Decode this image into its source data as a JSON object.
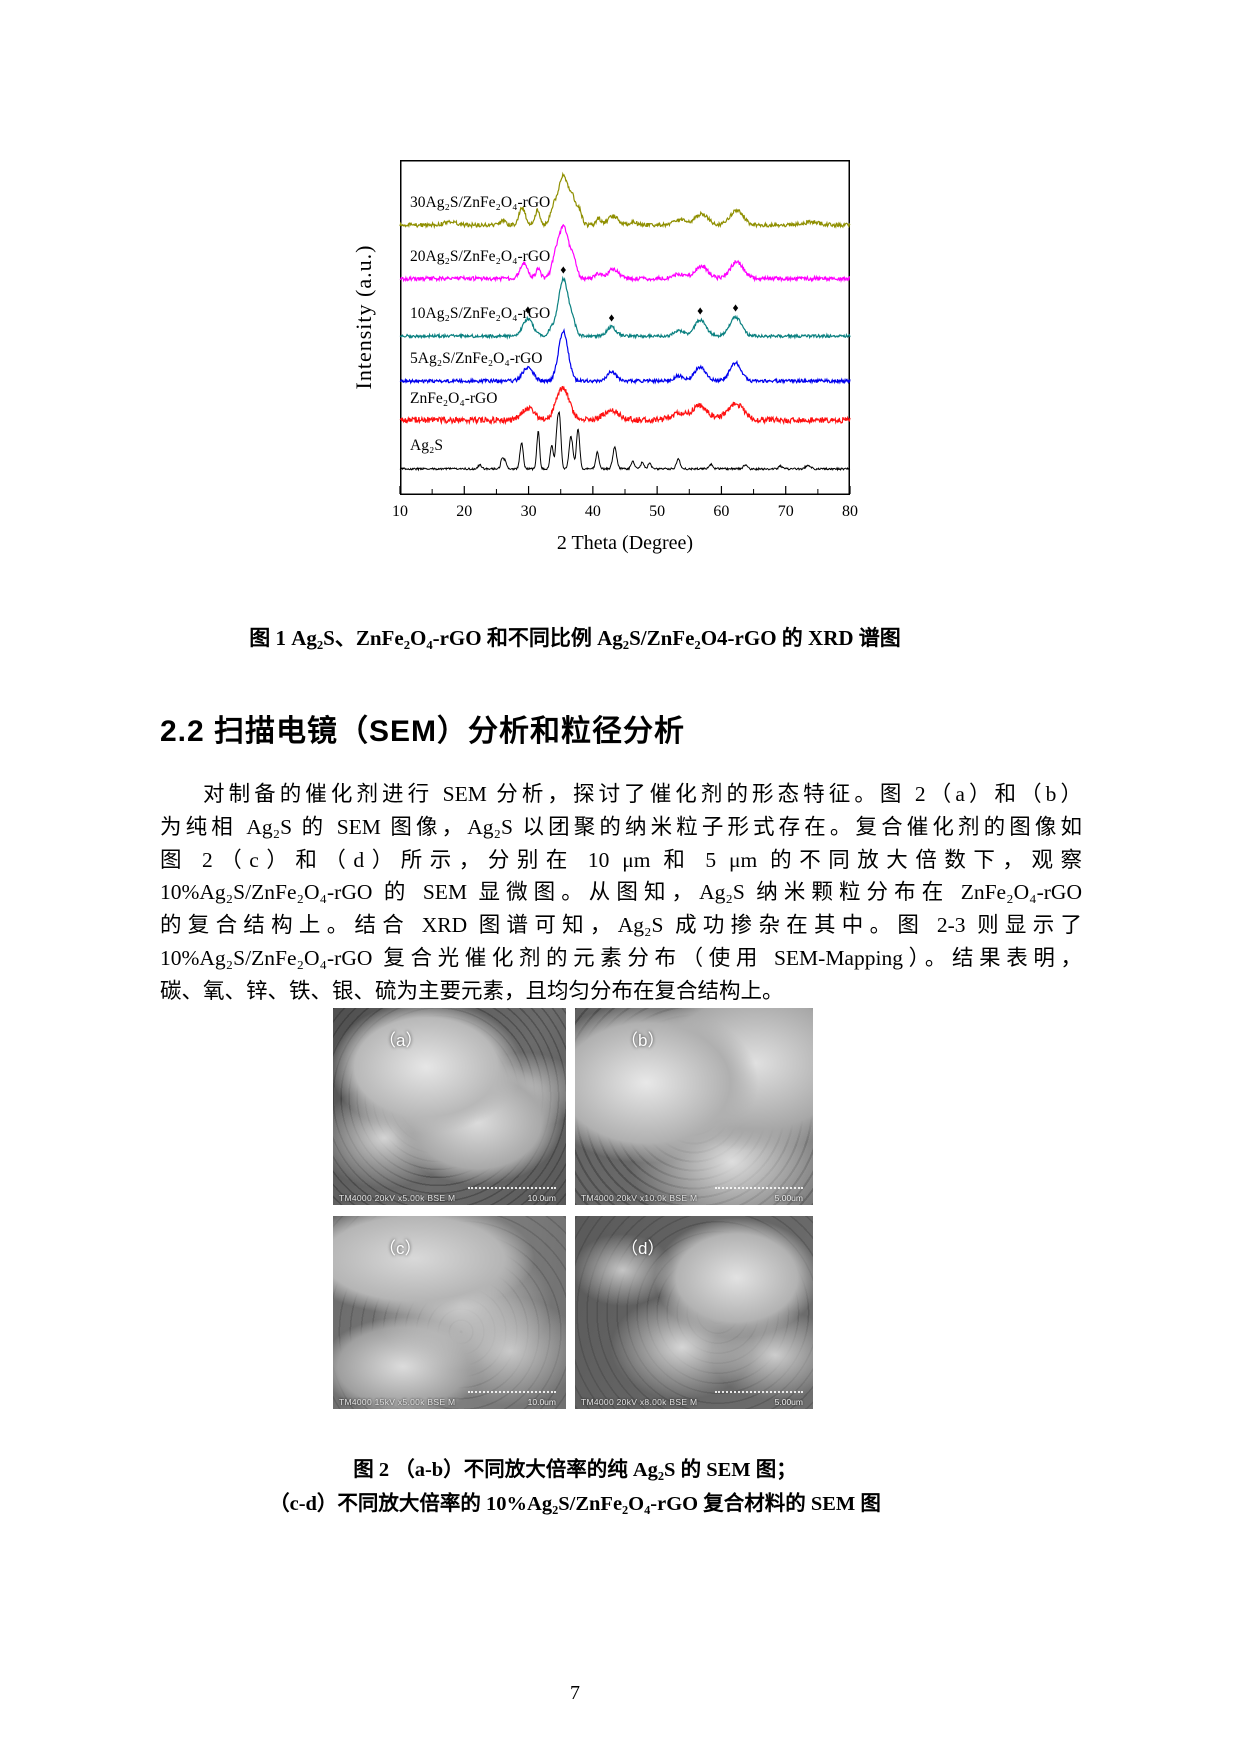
{
  "page": {
    "number": "7"
  },
  "chart_data": {
    "type": "line",
    "title": "",
    "xlabel": "2 Theta (Degree)",
    "ylabel": "Intensity (a.u.)",
    "xlim": [
      10,
      80
    ],
    "xticks": [
      10,
      20,
      30,
      40,
      50,
      60,
      70,
      80
    ],
    "grid": false,
    "marker_symbol": "♦",
    "series": [
      {
        "label": "30Ag₂S/ZnFe₂O₄-rGO",
        "color": "#8f8f00",
        "baseline": 0.2,
        "scale": 50,
        "noise": 4,
        "peaks": [
          {
            "c": 17.8,
            "h": 0.07,
            "w": 0.9
          },
          {
            "c": 26.0,
            "h": 0.1,
            "w": 0.4
          },
          {
            "c": 29.0,
            "h": 0.34,
            "w": 0.5
          },
          {
            "c": 31.4,
            "h": 0.3,
            "w": 0.4
          },
          {
            "c": 33.8,
            "h": 0.28,
            "w": 0.5
          },
          {
            "c": 35.4,
            "h": 1.0,
            "w": 0.8
          },
          {
            "c": 36.9,
            "h": 0.42,
            "w": 0.5
          },
          {
            "c": 37.9,
            "h": 0.28,
            "w": 0.4
          },
          {
            "c": 40.9,
            "h": 0.13,
            "w": 0.4
          },
          {
            "c": 43.2,
            "h": 0.18,
            "w": 0.8
          },
          {
            "c": 46.3,
            "h": 0.07,
            "w": 0.5
          },
          {
            "c": 53.5,
            "h": 0.1,
            "w": 0.9
          },
          {
            "c": 56.9,
            "h": 0.22,
            "w": 1.0
          },
          {
            "c": 62.4,
            "h": 0.3,
            "w": 1.0
          },
          {
            "c": 74.0,
            "h": 0.06,
            "w": 1.2
          }
        ]
      },
      {
        "label": "20Ag₂S/ZnFe₂O₄-rGO",
        "color": "#ff00ff",
        "baseline": 0.36,
        "scale": 52,
        "noise": 4,
        "peaks": [
          {
            "c": 29.3,
            "h": 0.3,
            "w": 0.6
          },
          {
            "c": 31.5,
            "h": 0.18,
            "w": 0.4
          },
          {
            "c": 34.0,
            "h": 0.22,
            "w": 0.5
          },
          {
            "c": 35.4,
            "h": 1.0,
            "w": 0.85
          },
          {
            "c": 37.0,
            "h": 0.28,
            "w": 0.5
          },
          {
            "c": 40.9,
            "h": 0.1,
            "w": 0.5
          },
          {
            "c": 43.2,
            "h": 0.18,
            "w": 0.8
          },
          {
            "c": 53.5,
            "h": 0.09,
            "w": 0.9
          },
          {
            "c": 56.9,
            "h": 0.24,
            "w": 1.0
          },
          {
            "c": 62.4,
            "h": 0.32,
            "w": 1.0
          }
        ]
      },
      {
        "label": "10Ag₂S/ZnFe₂O₄-rGO",
        "color": "#0a8080",
        "baseline": 0.53,
        "scale": 57,
        "noise": 3,
        "markers": [
          29.9,
          35.4,
          42.9,
          56.7,
          62.2
        ],
        "peaks": [
          {
            "c": 29.9,
            "h": 0.3,
            "w": 0.8
          },
          {
            "c": 33.5,
            "h": 0.1,
            "w": 0.5
          },
          {
            "c": 35.4,
            "h": 1.0,
            "w": 0.8
          },
          {
            "c": 36.9,
            "h": 0.18,
            "w": 0.5
          },
          {
            "c": 42.9,
            "h": 0.16,
            "w": 0.7
          },
          {
            "c": 53.4,
            "h": 0.09,
            "w": 0.8
          },
          {
            "c": 56.7,
            "h": 0.28,
            "w": 0.9
          },
          {
            "c": 62.2,
            "h": 0.33,
            "w": 0.9
          }
        ]
      },
      {
        "label": "5Ag₂S/ZnFe₂O₄-rGO",
        "color": "#0000ee",
        "baseline": 0.665,
        "scale": 50,
        "noise": 3.5,
        "peaks": [
          {
            "c": 29.9,
            "h": 0.28,
            "w": 0.8
          },
          {
            "c": 35.4,
            "h": 1.0,
            "w": 0.75
          },
          {
            "c": 42.9,
            "h": 0.18,
            "w": 0.7
          },
          {
            "c": 53.4,
            "h": 0.1,
            "w": 0.8
          },
          {
            "c": 56.7,
            "h": 0.28,
            "w": 0.9
          },
          {
            "c": 62.2,
            "h": 0.36,
            "w": 0.9
          }
        ]
      },
      {
        "label": "ZnFe₂O₄-rGO",
        "color": "#ff1111",
        "baseline": 0.785,
        "scale": 32,
        "noise": 6,
        "peaks": [
          {
            "c": 29.9,
            "h": 0.35,
            "w": 1.0
          },
          {
            "c": 35.3,
            "h": 1.0,
            "w": 1.0
          },
          {
            "c": 42.9,
            "h": 0.3,
            "w": 1.2
          },
          {
            "c": 53.4,
            "h": 0.2,
            "w": 1.2
          },
          {
            "c": 56.7,
            "h": 0.45,
            "w": 1.2
          },
          {
            "c": 62.2,
            "h": 0.5,
            "w": 1.3
          }
        ]
      },
      {
        "label": "Ag₂S",
        "color": "#000000",
        "baseline": 0.925,
        "scale": 52,
        "noise": 2,
        "peaks": [
          {
            "c": 22.4,
            "h": 0.08,
            "w": 0.25
          },
          {
            "c": 25.9,
            "h": 0.22,
            "w": 0.22
          },
          {
            "c": 26.4,
            "h": 0.15,
            "w": 0.2
          },
          {
            "c": 28.9,
            "h": 0.5,
            "w": 0.25
          },
          {
            "c": 31.5,
            "h": 0.72,
            "w": 0.22
          },
          {
            "c": 33.6,
            "h": 0.45,
            "w": 0.25
          },
          {
            "c": 34.4,
            "h": 0.55,
            "w": 0.22
          },
          {
            "c": 34.8,
            "h": 0.95,
            "w": 0.25
          },
          {
            "c": 36.6,
            "h": 0.62,
            "w": 0.3
          },
          {
            "c": 37.7,
            "h": 0.78,
            "w": 0.25
          },
          {
            "c": 40.7,
            "h": 0.32,
            "w": 0.25
          },
          {
            "c": 43.4,
            "h": 0.42,
            "w": 0.3
          },
          {
            "c": 46.2,
            "h": 0.15,
            "w": 0.25
          },
          {
            "c": 47.7,
            "h": 0.13,
            "w": 0.25
          },
          {
            "c": 48.8,
            "h": 0.1,
            "w": 0.25
          },
          {
            "c": 53.3,
            "h": 0.18,
            "w": 0.3
          },
          {
            "c": 58.3,
            "h": 0.09,
            "w": 0.3
          },
          {
            "c": 63.7,
            "h": 0.07,
            "w": 0.3
          },
          {
            "c": 69.2,
            "h": 0.05,
            "w": 0.3
          },
          {
            "c": 73.5,
            "h": 0.07,
            "w": 0.4
          }
        ]
      }
    ]
  },
  "figure1": {
    "caption": "图 1 Ag₂S、ZnFe₂O₄-rGO 和不同比例 Ag₂S/ZnFe₂O4-rGO 的  XRD 谱图"
  },
  "section": {
    "heading": "2.2 扫描电镜（SEM）分析和粒径分析"
  },
  "paragraph": {
    "lines": [
      "对制备的催化剂进行 SEM 分析，探讨了催化剂的形态特征。图 2（a）和（b）",
      "为纯相 Ag₂S 的 SEM 图像，Ag₂S 以团聚的纳米粒子形式存在。复合催化剂的图像如",
      "图 2（c）和（d）所示，分别在 10 μm 和 5 μm 的不同放大倍数下，观察",
      "10%Ag₂S/ZnFe₂O₄-rGO 的 SEM 显微图。从图知，Ag₂S 纳米颗粒分布在 ZnFe₂O₄-rGO",
      "的复合结构上。结合 XRD 图谱可知，Ag₂S 成功掺杂在其中。图 2-3 则显示了",
      "10%Ag₂S/ZnFe₂O₄-rGO 复合光催化剂的元素分布（使用 SEM-Mapping）。结果表明，",
      "碳、氧、锌、铁、银、硫为主要元素，且均匀分布在复合结构上。"
    ]
  },
  "figure2": {
    "panels": [
      {
        "label": "（a）",
        "status": "TM4000 20kV x5.00k BSE M",
        "scale": "10.0um"
      },
      {
        "label": "（b）",
        "status": "TM4000 20kV x10.0k BSE M",
        "scale": "5.00um"
      },
      {
        "label": "（c）",
        "status": "TM4000 15kV x5.00k BSE M",
        "scale": "10.0um"
      },
      {
        "label": "（d）",
        "status": "TM4000 20kV x8.00k BSE M",
        "scale": "5.00um"
      }
    ],
    "caption_line1": "图 2 （a-b）不同放大倍率的纯 Ag₂S 的 SEM 图；",
    "caption_line2": "（c-d）不同放大倍率的 10%Ag₂S/ZnFe₂O₄-rGO 复合材料的 SEM 图"
  }
}
